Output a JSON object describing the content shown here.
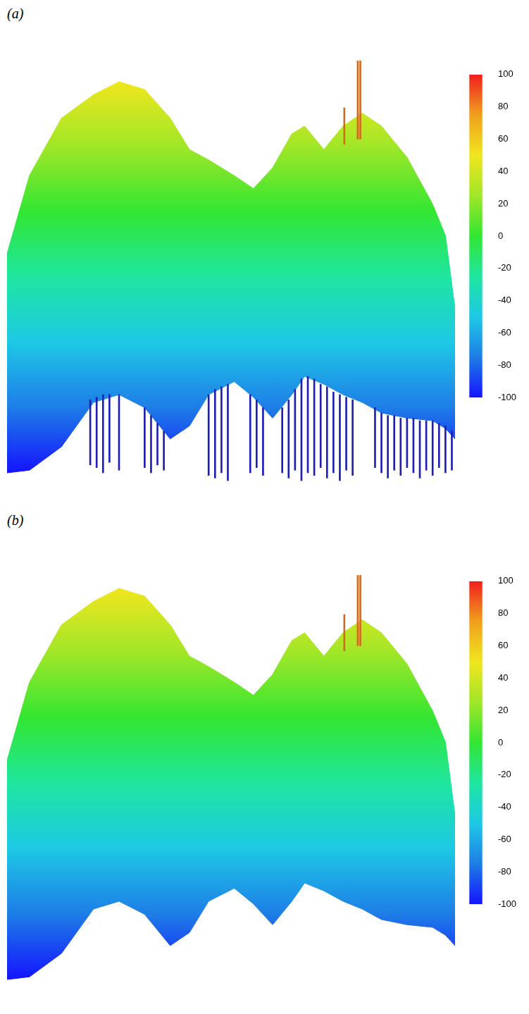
{
  "chart_data": [
    {
      "type": "area",
      "title": "(a)",
      "tick_labels": false,
      "grid": false,
      "xlim": [
        0,
        700
      ],
      "ylim": [
        -110,
        70
      ],
      "x": [
        0,
        35,
        85,
        135,
        175,
        215,
        255,
        285,
        315,
        355,
        385,
        415,
        445,
        465,
        495,
        525,
        555,
        585,
        625,
        665,
        685,
        700
      ],
      "series": [
        {
          "values": [
            -16,
            14,
            36,
            45,
            50,
            47,
            36,
            24,
            20,
            14,
            9,
            17,
            30,
            33,
            24,
            33,
            38,
            33,
            21,
            3,
            -9,
            -37
          ]
        },
        {
          "values": [
            -100,
            -99,
            -90,
            -73,
            -70,
            -75,
            -87,
            -82,
            -70,
            -65,
            -71,
            -79,
            -70,
            -63,
            -66,
            -70,
            -73,
            -77,
            -79,
            -80,
            -83,
            -87
          ]
        }
      ],
      "spikes": [
        {
          "color": "#1f1fb4",
          "x": [
            130,
            140,
            150,
            160,
            175,
            215,
            225,
            235,
            245,
            315,
            325,
            335,
            345,
            380,
            390,
            400,
            430,
            440,
            450,
            460,
            470,
            480,
            490,
            500,
            510,
            520,
            530,
            540,
            575,
            585,
            595,
            605,
            615,
            625,
            635,
            645,
            655,
            665,
            675,
            685,
            695
          ],
          "low": [
            -97,
            -98,
            -100,
            -96,
            -99,
            -98,
            -100,
            -97,
            -99,
            -101,
            -102,
            -100,
            -103,
            -100,
            -98,
            -101,
            -100,
            -102,
            -99,
            -103,
            -100,
            -101,
            -98,
            -102,
            -100,
            -103,
            -99,
            -101,
            -98,
            -100,
            -102,
            -99,
            -101,
            -98,
            -100,
            -102,
            -99,
            -101,
            -98,
            -100,
            -99
          ],
          "high": [
            -72,
            -71,
            -70,
            -70,
            -70,
            -75,
            -78,
            -81,
            -84,
            -70,
            -68,
            -67,
            -66,
            -70,
            -72,
            -75,
            -75,
            -72,
            -68,
            -64,
            -63,
            -64,
            -66,
            -67,
            -69,
            -70,
            -71,
            -72,
            -75,
            -77,
            -78,
            -78,
            -79,
            -79,
            -79,
            -80,
            -80,
            -80,
            -81,
            -82,
            -84
          ]
        },
        {
          "color": "#d2691e",
          "x": [
            527,
            548,
            552
          ],
          "low": [
            26,
            28,
            28
          ],
          "high": [
            40,
            58,
            58
          ]
        }
      ],
      "colorbar": {
        "range": [
          -100,
          100
        ],
        "ticks": [
          -100,
          -80,
          -60,
          -40,
          -20,
          0,
          20,
          40,
          60,
          80,
          100
        ],
        "colors": [
          "#1414ff",
          "#1e7de6",
          "#1ec8e6",
          "#1ee6a0",
          "#32e632",
          "#a0e628",
          "#f0e61e",
          "#f0a01e",
          "#f01e1e"
        ]
      }
    },
    {
      "type": "area",
      "title": "(b)",
      "tick_labels": false,
      "grid": false,
      "xlim": [
        0,
        700
      ],
      "ylim": [
        -110,
        70
      ],
      "x": [
        0,
        35,
        85,
        135,
        175,
        215,
        255,
        285,
        315,
        355,
        385,
        415,
        445,
        465,
        495,
        525,
        555,
        585,
        625,
        665,
        685,
        700
      ],
      "series": [
        {
          "values": [
            -16,
            14,
            36,
            45,
            50,
            47,
            36,
            24,
            20,
            14,
            9,
            17,
            30,
            33,
            24,
            33,
            38,
            33,
            21,
            3,
            -9,
            -37
          ]
        },
        {
          "values": [
            -100,
            -99,
            -90,
            -73,
            -70,
            -75,
            -87,
            -82,
            -70,
            -65,
            -71,
            -79,
            -70,
            -63,
            -66,
            -70,
            -73,
            -77,
            -79,
            -80,
            -83,
            -87
          ]
        }
      ],
      "spikes": [
        {
          "color": "#d2691e",
          "x": [
            527,
            548,
            552
          ],
          "low": [
            26,
            28,
            28
          ],
          "high": [
            40,
            55,
            55
          ]
        }
      ],
      "colorbar": {
        "range": [
          -100,
          100
        ],
        "ticks": [
          -100,
          -80,
          -60,
          -40,
          -20,
          0,
          20,
          40,
          60,
          80,
          100
        ],
        "colors": [
          "#1414ff",
          "#1e7de6",
          "#1ec8e6",
          "#1ee6a0",
          "#32e632",
          "#a0e628",
          "#f0e61e",
          "#f0a01e",
          "#f01e1e"
        ]
      }
    }
  ]
}
